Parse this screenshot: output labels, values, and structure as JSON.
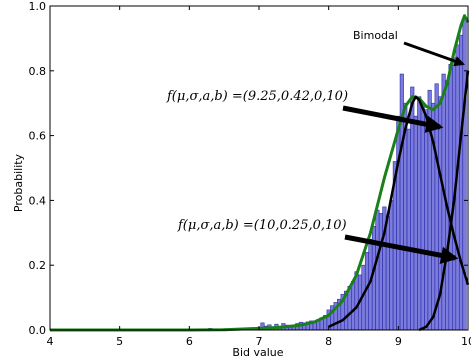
{
  "chart_data": {
    "type": "bar",
    "title": "",
    "xlabel": "Bid value",
    "ylabel": "Probability",
    "xlim": [
      4,
      10
    ],
    "ylim": [
      0,
      1.0
    ],
    "x_ticks": [
      "4",
      "5",
      "6",
      "7",
      "8",
      "9",
      "10"
    ],
    "y_ticks": [
      "0.0",
      "0.2",
      "0.4",
      "0.6",
      "0.8",
      "1.0"
    ],
    "histogram": {
      "color": "#7b7bdc",
      "edge_color": "#2a2aa8",
      "bin_centers": [
        6.3,
        6.5,
        6.7,
        7.0,
        7.05,
        7.1,
        7.15,
        7.2,
        7.25,
        7.3,
        7.35,
        7.4,
        7.45,
        7.5,
        7.55,
        7.6,
        7.65,
        7.7,
        7.75,
        7.8,
        7.85,
        7.9,
        7.95,
        8.0,
        8.05,
        8.1,
        8.15,
        8.2,
        8.25,
        8.3,
        8.35,
        8.4,
        8.45,
        8.5,
        8.55,
        8.6,
        8.65,
        8.7,
        8.75,
        8.8,
        8.85,
        8.9,
        8.95,
        9.0,
        9.05,
        9.1,
        9.15,
        9.2,
        9.25,
        9.3,
        9.35,
        9.4,
        9.45,
        9.5,
        9.55,
        9.6,
        9.65,
        9.7,
        9.75,
        9.8,
        9.85,
        9.9,
        9.95
      ],
      "values": [
        0.005,
        0.004,
        0.005,
        0.007,
        0.022,
        0.012,
        0.016,
        0.01,
        0.018,
        0.012,
        0.02,
        0.015,
        0.01,
        0.016,
        0.02,
        0.024,
        0.022,
        0.025,
        0.028,
        0.028,
        0.032,
        0.038,
        0.045,
        0.062,
        0.075,
        0.085,
        0.095,
        0.11,
        0.12,
        0.135,
        0.15,
        0.18,
        0.17,
        0.2,
        0.24,
        0.28,
        0.32,
        0.37,
        0.36,
        0.38,
        0.35,
        0.4,
        0.52,
        0.66,
        0.79,
        0.7,
        0.62,
        0.75,
        0.66,
        0.72,
        0.7,
        0.68,
        0.74,
        0.7,
        0.76,
        0.72,
        0.79,
        0.77,
        0.82,
        0.84,
        0.88,
        0.91,
        0.96
      ]
    },
    "series": [
      {
        "name": "Bimodal",
        "color": "#1b7f1b",
        "x": [
          4,
          5,
          6,
          6.5,
          7,
          7.3,
          7.6,
          7.8,
          8.0,
          8.2,
          8.4,
          8.6,
          8.8,
          9.0,
          9.1,
          9.2,
          9.3,
          9.4,
          9.5,
          9.6,
          9.7,
          9.8,
          9.9,
          9.95,
          10
        ],
        "y": [
          0,
          0,
          0,
          0.001,
          0.005,
          0.008,
          0.015,
          0.025,
          0.045,
          0.09,
          0.17,
          0.3,
          0.47,
          0.62,
          0.69,
          0.72,
          0.715,
          0.69,
          0.68,
          0.7,
          0.76,
          0.86,
          0.94,
          0.97,
          0.95
        ]
      },
      {
        "name": "f(9.25,0.42,0,10)",
        "color": "#000000",
        "x": [
          8.0,
          8.2,
          8.4,
          8.6,
          8.8,
          9.0,
          9.1,
          9.2,
          9.25,
          9.3,
          9.4,
          9.5,
          9.6,
          9.7,
          9.8,
          9.9,
          10
        ],
        "y": [
          0.01,
          0.03,
          0.07,
          0.15,
          0.3,
          0.52,
          0.62,
          0.7,
          0.72,
          0.71,
          0.66,
          0.58,
          0.48,
          0.38,
          0.29,
          0.21,
          0.14
        ]
      },
      {
        "name": "f(10,0.25,0,10)",
        "color": "#000000",
        "x": [
          9.3,
          9.4,
          9.5,
          9.6,
          9.7,
          9.8,
          9.9,
          10
        ],
        "y": [
          0.0,
          0.01,
          0.04,
          0.11,
          0.24,
          0.4,
          0.6,
          0.8
        ]
      }
    ],
    "annotations": {
      "bimodal_label": "Bimodal",
      "formula1": "f(μ,σ,a,b) =(9.25,0.42,0,10)",
      "formula2": "f(μ,σ,a,b) =(10,0.25,0,10)"
    },
    "grid": false,
    "legend": "none"
  }
}
